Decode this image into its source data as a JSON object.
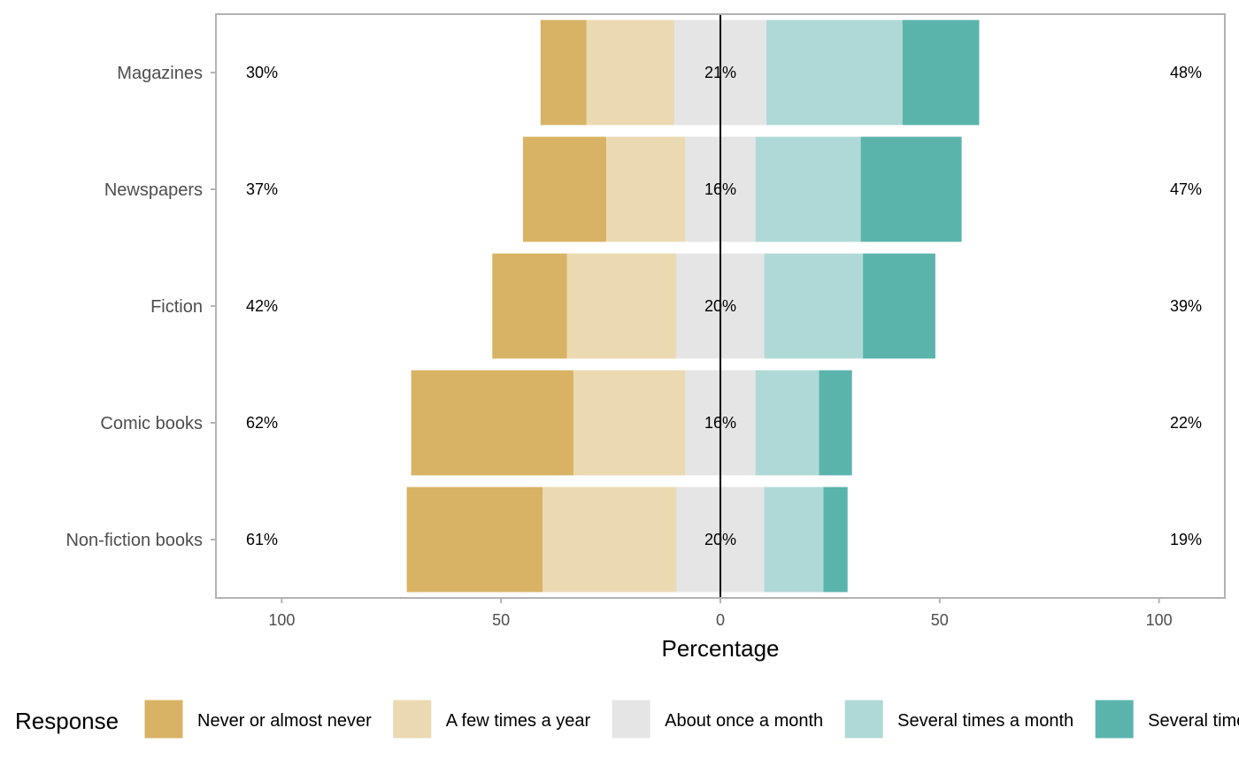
{
  "chart_data": {
    "type": "bar",
    "orientation": "horizontal",
    "stacking": "diverging",
    "categories": [
      "Magazines",
      "Newspapers",
      "Fiction",
      "Comic books",
      "Non-fiction books"
    ],
    "series": [
      {
        "name": "Never or almost never",
        "color": "#D8B365",
        "values": [
          10.5,
          19,
          17,
          37,
          31
        ]
      },
      {
        "name": "A few times a year",
        "color": "#EBD9B2",
        "values": [
          20,
          18,
          25,
          25.5,
          30.5
        ]
      },
      {
        "name": "About once a month",
        "color": "#E5E5E5",
        "values": [
          21,
          16,
          20,
          16,
          20
        ]
      },
      {
        "name": "Several times a month",
        "color": "#AFD9D7",
        "values": [
          31,
          24,
          22.5,
          14.5,
          13.5
        ]
      },
      {
        "name": "Several times a week",
        "color": "#5AB4AC",
        "values": [
          17.5,
          23,
          16.5,
          7.5,
          5.5
        ]
      }
    ],
    "left_labels": [
      "30%",
      "37%",
      "42%",
      "62%",
      "61%"
    ],
    "center_labels": [
      "21%",
      "16%",
      "20%",
      "16%",
      "20%"
    ],
    "right_labels": [
      "48%",
      "47%",
      "39%",
      "22%",
      "19%"
    ],
    "xlabel": "Percentage",
    "xlim": [
      -115,
      115
    ],
    "x_ticks": [
      -100,
      -50,
      0,
      50,
      100
    ],
    "x_tick_labels": [
      "100",
      "50",
      "0",
      "50",
      "100"
    ],
    "legend": {
      "title": "Response",
      "position": "bottom"
    },
    "grid": false
  }
}
